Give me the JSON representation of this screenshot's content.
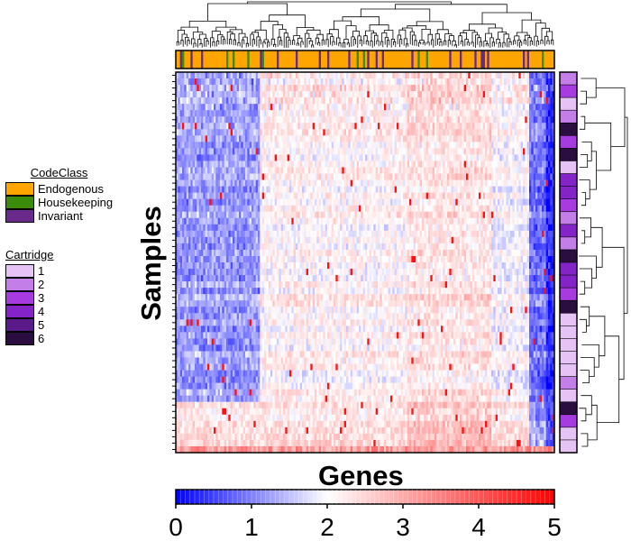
{
  "chart_data": {
    "type": "heatmap",
    "xlabel": "Genes",
    "ylabel": "Samples",
    "color_scale": {
      "min": 0,
      "max": 5,
      "mid": 2,
      "ticks": [
        "0",
        "1",
        "2",
        "3",
        "4",
        "5"
      ],
      "low_color": "#0000ff",
      "mid_color": "#ffffff",
      "high_color": "#ff0000"
    },
    "num_samples": 60,
    "num_genes": 180,
    "dendrograms": [
      "columns",
      "rows"
    ],
    "column_annotation": {
      "name": "CodeClass",
      "levels": [
        {
          "label": "Endogenous",
          "color": "#ffa500"
        },
        {
          "label": "Housekeeping",
          "color": "#3a8c0a"
        },
        {
          "label": "Invariant",
          "color": "#6a2a8c"
        }
      ]
    },
    "row_annotation": {
      "name": "Cartridge",
      "levels": [
        {
          "label": "1",
          "color": "#e6c3f5"
        },
        {
          "label": "2",
          "color": "#c47ee8"
        },
        {
          "label": "3",
          "color": "#a63ce0"
        },
        {
          "label": "4",
          "color": "#8424c8"
        },
        {
          "label": "5",
          "color": "#5a1a8a"
        },
        {
          "label": "6",
          "color": "#2a0e40"
        }
      ]
    }
  }
}
